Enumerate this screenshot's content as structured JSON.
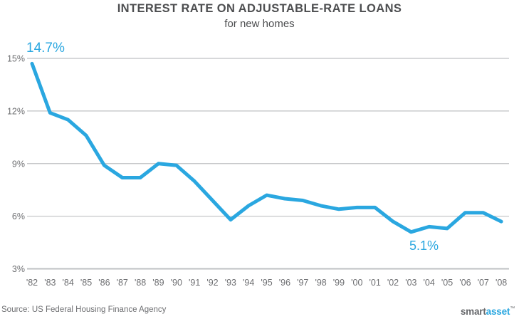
{
  "header": {
    "title": "INTEREST RATE ON ADJUSTABLE-RATE LOANS",
    "subtitle": "for new homes"
  },
  "source": {
    "text": "Source: US Federal Housing Finance Agency"
  },
  "logo": {
    "smart": "smart",
    "asset": "asset",
    "trademark": "™"
  },
  "colors": {
    "line": "#2AA7E0",
    "accent_text": "#2AA7E0",
    "title_text": "#4D4E50",
    "axis_text": "#6E6F72",
    "gridline": "#BFC1C3",
    "source_text": "#6E6F72",
    "logo_smart": "#66686B"
  },
  "chart_data": {
    "type": "line",
    "title": "INTEREST RATE ON ADJUSTABLE-RATE LOANS",
    "subtitle": "for new homes",
    "xlabel": "",
    "ylabel": "",
    "categories": [
      "'82",
      "'83",
      "'84",
      "'85",
      "'86",
      "'87",
      "'88",
      "'89",
      "'90",
      "'91",
      "'92",
      "'93",
      "'94",
      "'95",
      "'96",
      "'97",
      "'98",
      "'99",
      "'00",
      "'01",
      "'02",
      "'03",
      "'04",
      "'05",
      "'06",
      "'07",
      "'08"
    ],
    "series": [
      {
        "name": "Interest rate",
        "values": [
          14.7,
          11.9,
          11.5,
          10.6,
          8.9,
          8.2,
          8.2,
          9.0,
          8.9,
          8.0,
          6.9,
          5.8,
          6.6,
          7.2,
          7.0,
          6.9,
          6.6,
          6.4,
          6.5,
          6.5,
          5.7,
          5.1,
          5.4,
          5.3,
          6.2,
          6.2,
          5.7
        ]
      }
    ],
    "yticks": [
      {
        "label": "15%",
        "value": 15
      },
      {
        "label": "12%",
        "value": 12
      },
      {
        "label": "9%",
        "value": 9
      },
      {
        "label": "6%",
        "value": 6
      },
      {
        "label": "3%",
        "value": 3
      }
    ],
    "ylim": [
      3,
      15.7
    ],
    "grid": "horizontal",
    "legend": "none",
    "annotations": [
      {
        "label": "14.7%",
        "category": "'82",
        "value": 14.7
      },
      {
        "label": "5.1%",
        "category": "'03",
        "value": 5.1
      }
    ]
  }
}
